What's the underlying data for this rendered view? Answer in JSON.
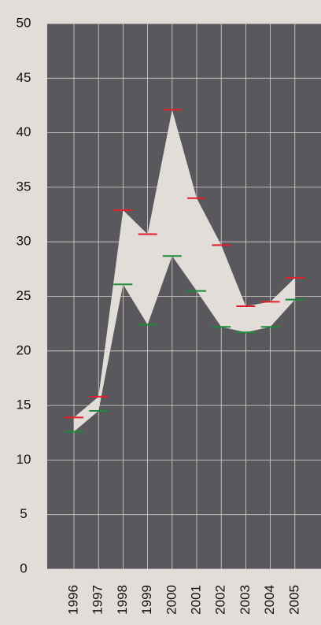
{
  "chart_data": {
    "type": "high-low",
    "categories": [
      "1996",
      "1997",
      "1998",
      "1999",
      "2000",
      "2001",
      "2002",
      "2003",
      "2004",
      "2005"
    ],
    "series": [
      {
        "color": "#e0202a",
        "values": [
          13.9,
          15.8,
          32.9,
          30.7,
          42.1,
          34.0,
          29.7,
          24.1,
          24.5,
          26.7
        ]
      },
      {
        "color": "#1e8a3a",
        "values": [
          12.6,
          14.5,
          26.1,
          22.4,
          28.7,
          25.5,
          22.2,
          21.7,
          22.2,
          24.7
        ]
      }
    ],
    "area_color": "#e2ddd9",
    "background": "#58585d",
    "ylim": [
      0,
      50
    ],
    "yticks": [
      0,
      5,
      10,
      15,
      20,
      25,
      30,
      35,
      40,
      45,
      50
    ],
    "grid": true
  }
}
